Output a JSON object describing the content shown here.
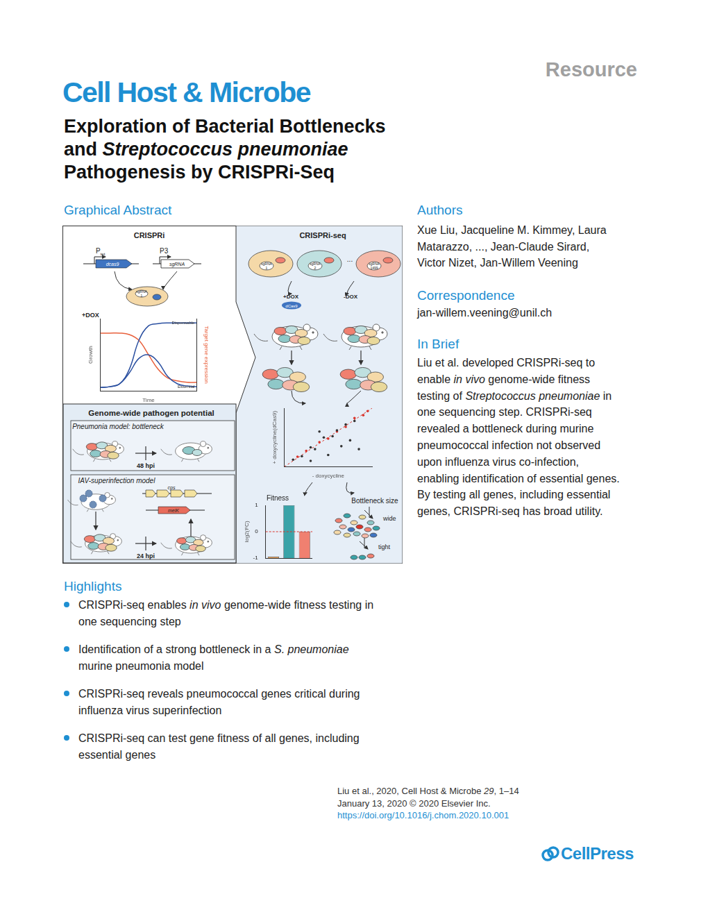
{
  "header": {
    "article_type": "Resource",
    "journal": "Cell Host & Microbe",
    "title_lines": [
      [
        "Exploration of Bacterial Bottlenecks"
      ],
      [
        "and ",
        {
          "text": "Streptococcus pneumoniae",
          "italic": true
        }
      ],
      [
        "Pathogenesis by CRISPRi-Seq"
      ]
    ]
  },
  "graphical_abstract": {
    "heading": "Graphical Abstract",
    "crispri": {
      "title": "CRISPRi",
      "promoter_tet": [
        "P",
        "tet"
      ],
      "promoter_p3": "P3",
      "genes": [
        "dcas9",
        "sgRNA"
      ],
      "cell_label": [
        "sgRNA",
        "1"
      ],
      "condition": "+DOX"
    },
    "crispri_seq": {
      "title": "CRISPRi-seq",
      "cell_labels": [
        [
          "sgRNA",
          "1"
        ],
        [
          "sgRNA",
          "2"
        ],
        [
          "sgRNA",
          "1499"
        ]
      ],
      "ellipsis": "...",
      "conditions": [
        "+DOX",
        "-DOX"
      ],
      "protein": "dCas9"
    },
    "pathogen_potential": {
      "title": "Genome-wide pathogen potential",
      "pneumonia": {
        "title": "Pneumonia model: bottleneck",
        "time": "48 hpi"
      },
      "iav": {
        "title": "IAV-superinfection model",
        "genes": [
          "cps",
          "melK"
        ],
        "time": "24 hpi"
      }
    },
    "bottleneck": {
      "title": "Bottleneck size",
      "labels": [
        "wide",
        "tight"
      ]
    }
  },
  "chart_data": [
    {
      "type": "line",
      "x_label": "Time",
      "y_label": "Growth",
      "y2_label": "Target gene expression",
      "annotations": [
        "Dispensable",
        "Essential"
      ],
      "x": [
        0,
        1,
        2,
        3,
        4,
        5,
        6,
        7,
        8,
        9,
        10
      ],
      "series": [
        {
          "color": "#2a4fa0",
          "values": [
            0.05,
            0.06,
            0.1,
            0.3,
            0.7,
            0.9,
            0.93,
            0.94,
            0.94,
            0.94,
            0.94
          ]
        },
        {
          "color": "#2a4fa0",
          "values": [
            0.05,
            0.06,
            0.1,
            0.25,
            0.45,
            0.5,
            0.4,
            0.2,
            0.1,
            0.07,
            0.06
          ]
        },
        {
          "color": "#e8603c",
          "axis": "y2",
          "values": [
            0.8,
            0.8,
            0.8,
            0.78,
            0.7,
            0.5,
            0.3,
            0.18,
            0.14,
            0.12,
            0.12
          ]
        }
      ],
      "xlim": [
        0,
        10
      ],
      "ylim": [
        0,
        1
      ],
      "y2lim": [
        0,
        1
      ],
      "xticks": [],
      "yticks": [],
      "y2ticks": [],
      "tick_labels": false,
      "grid": false
    },
    {
      "type": "scatter",
      "x_label": "- doxycycline",
      "y_label": "+ doxycycline(dCas9)",
      "series": [
        {
          "color": "#333333",
          "x": [
            0.1,
            0.2,
            0.3,
            0.35,
            0.45,
            0.55,
            0.6,
            0.7,
            0.8,
            0.3,
            0.5,
            0.65,
            0.75,
            0.85,
            0.4
          ],
          "y": [
            0.12,
            0.18,
            0.33,
            0.3,
            0.5,
            0.52,
            0.62,
            0.72,
            0.78,
            0.1,
            0.2,
            0.35,
            0.45,
            0.3,
            0.6
          ]
        },
        {
          "color": "#d9342b",
          "x": [
            0.15,
            0.25,
            0.4,
            0.5,
            0.6,
            0.7,
            0.8,
            0.9,
            0.95
          ],
          "y": [
            0.17,
            0.27,
            0.42,
            0.48,
            0.6,
            0.68,
            0.83,
            0.88,
            0.95
          ]
        },
        {
          "type": "line",
          "color": "#d9342b",
          "line_style": "dashed",
          "x": [
            0,
            1
          ],
          "y": [
            0,
            1
          ]
        }
      ],
      "xlim": [
        0,
        1
      ],
      "ylim": [
        0,
        1
      ],
      "xticks": [],
      "yticks": [],
      "tick_labels": false,
      "grid": false
    },
    {
      "type": "bar",
      "title": "Fitness",
      "y_label": "log2(FC)",
      "categories": [
        null,
        null,
        null
      ],
      "values": [
        -0.95,
        1,
        0
      ],
      "colors": [
        "#f0a860",
        "#3aa3a8",
        "#f08070"
      ],
      "reference_line": 0,
      "ylim": [
        -1,
        1
      ],
      "yticks": [
        -1,
        0,
        1
      ],
      "tick_labels": "y",
      "grid": false
    }
  ],
  "sidebar": {
    "authors": {
      "heading": "Authors",
      "lines": [
        [
          "Xue Liu, Jacqueline M. Kimmey, Laura"
        ],
        [
          "Matarazzo, ..., Jean-Claude Sirard,"
        ],
        [
          "Victor Nizet, Jan-Willem Veening"
        ]
      ]
    },
    "correspondence": {
      "heading": "Correspondence",
      "email": "jan-willem.veening@unil.ch"
    },
    "in_brief": {
      "heading": "In Brief",
      "lines": [
        [
          "Liu et al. developed CRISPRi-seq to"
        ],
        [
          "enable ",
          {
            "text": "in vivo",
            "italic": true
          },
          " genome-wide fitness"
        ],
        [
          "testing of ",
          {
            "text": "Streptococcus pneumoniae",
            "italic": true
          },
          " in"
        ],
        [
          "one sequencing step. CRISPRi-seq"
        ],
        [
          "revealed a bottleneck during murine"
        ],
        [
          "pneumococcal infection not observed"
        ],
        [
          "upon influenza virus co-infection,"
        ],
        [
          "enabling identification of essential genes."
        ],
        [
          "By testing all genes, including essential"
        ],
        [
          "genes, CRISPRi-seq has broad utility."
        ]
      ]
    }
  },
  "highlights": {
    "heading": "Highlights",
    "items": [
      [
        [
          "CRISPRi-seq enables ",
          {
            "text": "in vivo",
            "italic": true
          },
          " genome-wide fitness testing in"
        ],
        [
          "one sequencing step"
        ]
      ],
      [
        [
          "Identification of a strong bottleneck in a ",
          {
            "text": "S. pneumoniae",
            "italic": true
          }
        ],
        [
          "murine pneumonia model"
        ]
      ],
      [
        [
          "CRISPRi-seq reveals pneumococcal genes critical during"
        ],
        [
          "influenza virus superinfection"
        ]
      ],
      [
        [
          "CRISPRi-seq can test gene fitness of all genes, including"
        ],
        [
          "essential genes"
        ]
      ]
    ]
  },
  "footer": {
    "citation_lines": [
      [
        "Liu et al., 2020, Cell Host & Microbe ",
        {
          "text": "29",
          "italic": true
        },
        ", 1–14"
      ],
      [
        "January 13, 2020 © 2020 Elsevier Inc."
      ],
      [
        "https://doi.org/10.1016/j.chom.2020.10.001"
      ]
    ],
    "publisher": "CellPress"
  }
}
